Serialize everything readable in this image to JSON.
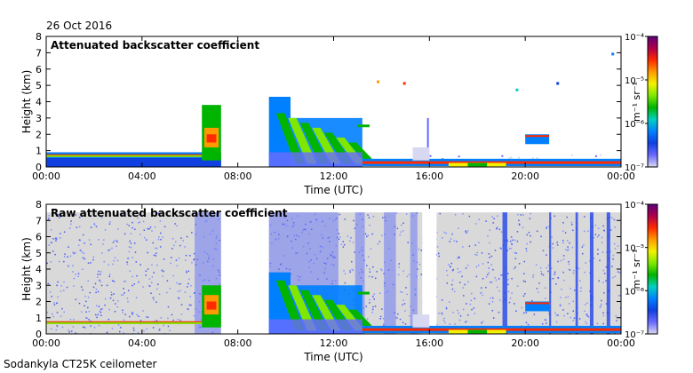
{
  "date": "26 Oct 2016",
  "footer": "Sodankyla CT25K ceilometer",
  "colorbar": {
    "unit": "m⁻¹ sr⁻¹",
    "tick_labels": [
      "10⁻⁴",
      "10⁻⁵",
      "10⁻⁶",
      "10⁻⁷"
    ],
    "colors": [
      "#5c007a",
      "#b0004a",
      "#ff2a00",
      "#ff9a00",
      "#f2f200",
      "#7ee800",
      "#00b400",
      "#00d0c0",
      "#0080ff",
      "#1040e0",
      "#6a6aff",
      "#d8d8f2"
    ]
  },
  "chart_data": [
    {
      "type": "heatmap",
      "title": "Attenuated backscatter coefficient",
      "xlabel": "Time (UTC)",
      "ylabel": "Height (km)",
      "x_ticks": [
        "00:00",
        "04:00",
        "08:00",
        "12:00",
        "16:00",
        "20:00",
        "00:00"
      ],
      "y_ticks": [
        "0",
        "1",
        "2",
        "3",
        "4",
        "5",
        "6",
        "7",
        "8"
      ],
      "xlim_hours": [
        0,
        24
      ],
      "ylim_km": [
        0,
        8
      ],
      "colorscale": "log",
      "color_range": [
        1e-07,
        0.0001
      ],
      "no_data_intervals_hours": [
        [
          7.3,
          9.3
        ]
      ],
      "features": [
        {
          "name": "low noisy layer",
          "t_hours": [
            0,
            7.3
          ],
          "h_km": [
            0,
            0.9
          ]
        },
        {
          "name": "boundary layer top",
          "t_hours": [
            0,
            7.3
          ],
          "h_km": 0.75
        },
        {
          "name": "rising aerosol layer",
          "t_hours": [
            6.5,
            7.3
          ],
          "h_km": [
            0.5,
            3.8
          ]
        },
        {
          "name": "clouds and precipitation",
          "t_hours": [
            9.3,
            13.2
          ],
          "h_km": [
            0,
            4.3
          ]
        },
        {
          "name": "low cloud layer",
          "t_hours": [
            13.2,
            24
          ],
          "h_km": 0.3
        },
        {
          "name": "scattered cloud",
          "t_hours": [
            20.0,
            21.0
          ],
          "h_km": [
            1.4,
            2.0
          ]
        }
      ]
    },
    {
      "type": "heatmap",
      "title": "Raw attenuated backscatter coefficient",
      "xlabel": "Time (UTC)",
      "ylabel": "Height (km)",
      "x_ticks": [
        "00:00",
        "04:00",
        "08:00",
        "12:00",
        "16:00",
        "20:00",
        "00:00"
      ],
      "y_ticks": [
        "0",
        "1",
        "2",
        "3",
        "4",
        "5",
        "6",
        "7",
        "8"
      ],
      "xlim_hours": [
        0,
        24
      ],
      "ylim_km": [
        0,
        8
      ],
      "colorscale": "log",
      "color_range": [
        1e-07,
        0.0001
      ],
      "no_data_intervals_hours": [
        [
          7.3,
          9.3
        ]
      ],
      "features": [
        {
          "name": "noise background",
          "t_hours": [
            0,
            24
          ],
          "h_km": [
            0,
            7.5
          ]
        },
        {
          "name": "rising aerosol layer",
          "t_hours": [
            6.5,
            7.3
          ],
          "h_km": [
            0.5,
            3.0
          ]
        },
        {
          "name": "clouds and precipitation",
          "t_hours": [
            9.3,
            13.2
          ],
          "h_km": [
            0,
            3.8
          ]
        },
        {
          "name": "low cloud layer",
          "t_hours": [
            13.2,
            24
          ],
          "h_km": 0.3
        }
      ]
    }
  ]
}
